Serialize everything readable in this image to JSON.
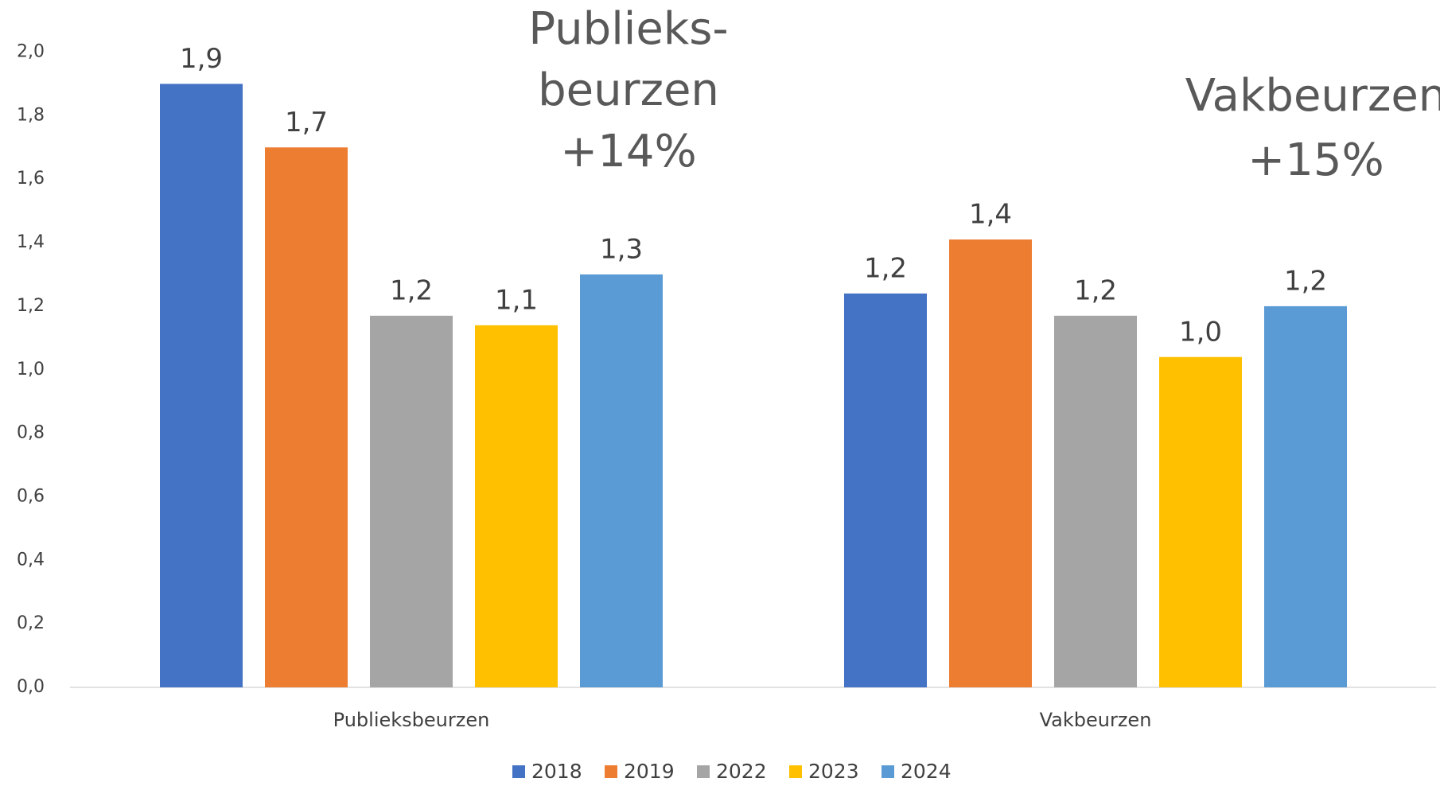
{
  "chart_data": {
    "type": "bar",
    "categories": [
      "Publieksbeurzen",
      "Vakbeurzen"
    ],
    "series": [
      {
        "name": "2018",
        "color": "#4472c4",
        "values": [
          1.9,
          1.24
        ],
        "value_labels": [
          "1,9",
          "1,2"
        ]
      },
      {
        "name": "2019",
        "color": "#ed7d31",
        "values": [
          1.7,
          1.41
        ],
        "value_labels": [
          "1,7",
          "1,4"
        ]
      },
      {
        "name": "2022",
        "color": "#a5a5a5",
        "values": [
          1.17,
          1.17
        ],
        "value_labels": [
          "1,2",
          "1,2"
        ]
      },
      {
        "name": "2023",
        "color": "#ffc000",
        "values": [
          1.14,
          1.04
        ],
        "value_labels": [
          "1,1",
          "1,0"
        ]
      },
      {
        "name": "2024",
        "color": "#5b9bd5",
        "values": [
          1.3,
          1.2
        ],
        "value_labels": [
          "1,3",
          "1,2"
        ]
      }
    ],
    "ylim": [
      0,
      2.0
    ],
    "yticks": [
      {
        "value": 0,
        "label": "0,0"
      },
      {
        "value": 0.2,
        "label": "0,2"
      },
      {
        "value": 0.4,
        "label": "0,4"
      },
      {
        "value": 0.6,
        "label": "0,6"
      },
      {
        "value": 0.8,
        "label": "0,8"
      },
      {
        "value": 1.0,
        "label": "1,0"
      },
      {
        "value": 1.2,
        "label": "1,2"
      },
      {
        "value": 1.4,
        "label": "1,4"
      },
      {
        "value": 1.6,
        "label": "1,6"
      },
      {
        "value": 1.8,
        "label": "1,8"
      },
      {
        "value": 2.0,
        "label": "2,0"
      }
    ],
    "annotations": [
      {
        "lines": [
          "Publieks-",
          "beurzen",
          "+14%"
        ]
      },
      {
        "lines": [
          "Vakbeurzen",
          "+15%"
        ]
      }
    ],
    "grid": false,
    "legend": "bottom"
  }
}
